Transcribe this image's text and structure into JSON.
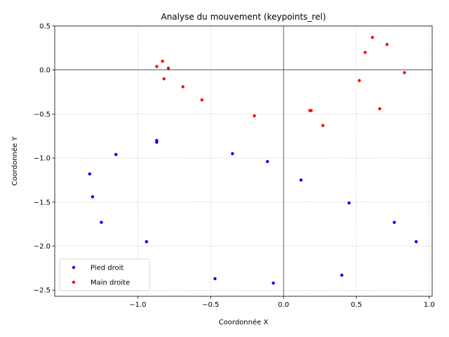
{
  "chart_data": {
    "type": "scatter",
    "title": "Analyse du mouvement (keypoints_rel)",
    "xlabel": "Coordonnée X",
    "ylabel": "Coordonnée Y",
    "xlim": [
      -1.57,
      1.02
    ],
    "ylim": [
      -2.57,
      0.5
    ],
    "xticks": [
      -1.0,
      -0.5,
      0.0,
      0.5,
      1.0
    ],
    "xtick_labels": [
      "−1.0",
      "−0.5",
      "0.0",
      "0.5",
      "1.0"
    ],
    "yticks": [
      0.5,
      0.0,
      -0.5,
      -1.0,
      -1.5,
      -2.0,
      -2.5
    ],
    "ytick_labels": [
      "0.5",
      "0.0",
      "−0.5",
      "−1.0",
      "−1.5",
      "−2.0",
      "−2.5"
    ],
    "grid": true,
    "legend_position": "lower-left",
    "reference_lines": {
      "x": 0,
      "y": 0
    },
    "series": [
      {
        "name": "Pied droit",
        "color": "#0000ff",
        "points": [
          [
            -1.33,
            -1.18
          ],
          [
            -1.31,
            -1.44
          ],
          [
            -1.25,
            -1.73
          ],
          [
            -1.15,
            -0.96
          ],
          [
            -0.94,
            -1.95
          ],
          [
            -0.87,
            -0.8
          ],
          [
            -0.87,
            -0.82
          ],
          [
            -0.47,
            -2.37
          ],
          [
            -0.35,
            -0.95
          ],
          [
            -0.11,
            -1.04
          ],
          [
            -0.07,
            -2.42
          ],
          [
            0.12,
            -1.25
          ],
          [
            0.45,
            -1.51
          ],
          [
            0.4,
            -2.33
          ],
          [
            0.76,
            -1.73
          ],
          [
            0.91,
            -1.95
          ]
        ]
      },
      {
        "name": "Main droite",
        "color": "#ff0000",
        "points": [
          [
            -0.87,
            0.04
          ],
          [
            -0.83,
            0.1
          ],
          [
            -0.79,
            0.02
          ],
          [
            -0.82,
            -0.1
          ],
          [
            -0.69,
            -0.19
          ],
          [
            -0.56,
            -0.34
          ],
          [
            -0.2,
            -0.52
          ],
          [
            0.18,
            -0.46
          ],
          [
            0.19,
            -0.46
          ],
          [
            0.27,
            -0.63
          ],
          [
            0.52,
            -0.12
          ],
          [
            0.56,
            0.2
          ],
          [
            0.61,
            0.37
          ],
          [
            0.66,
            -0.44
          ],
          [
            0.71,
            0.29
          ],
          [
            0.83,
            -0.03
          ]
        ]
      }
    ]
  }
}
